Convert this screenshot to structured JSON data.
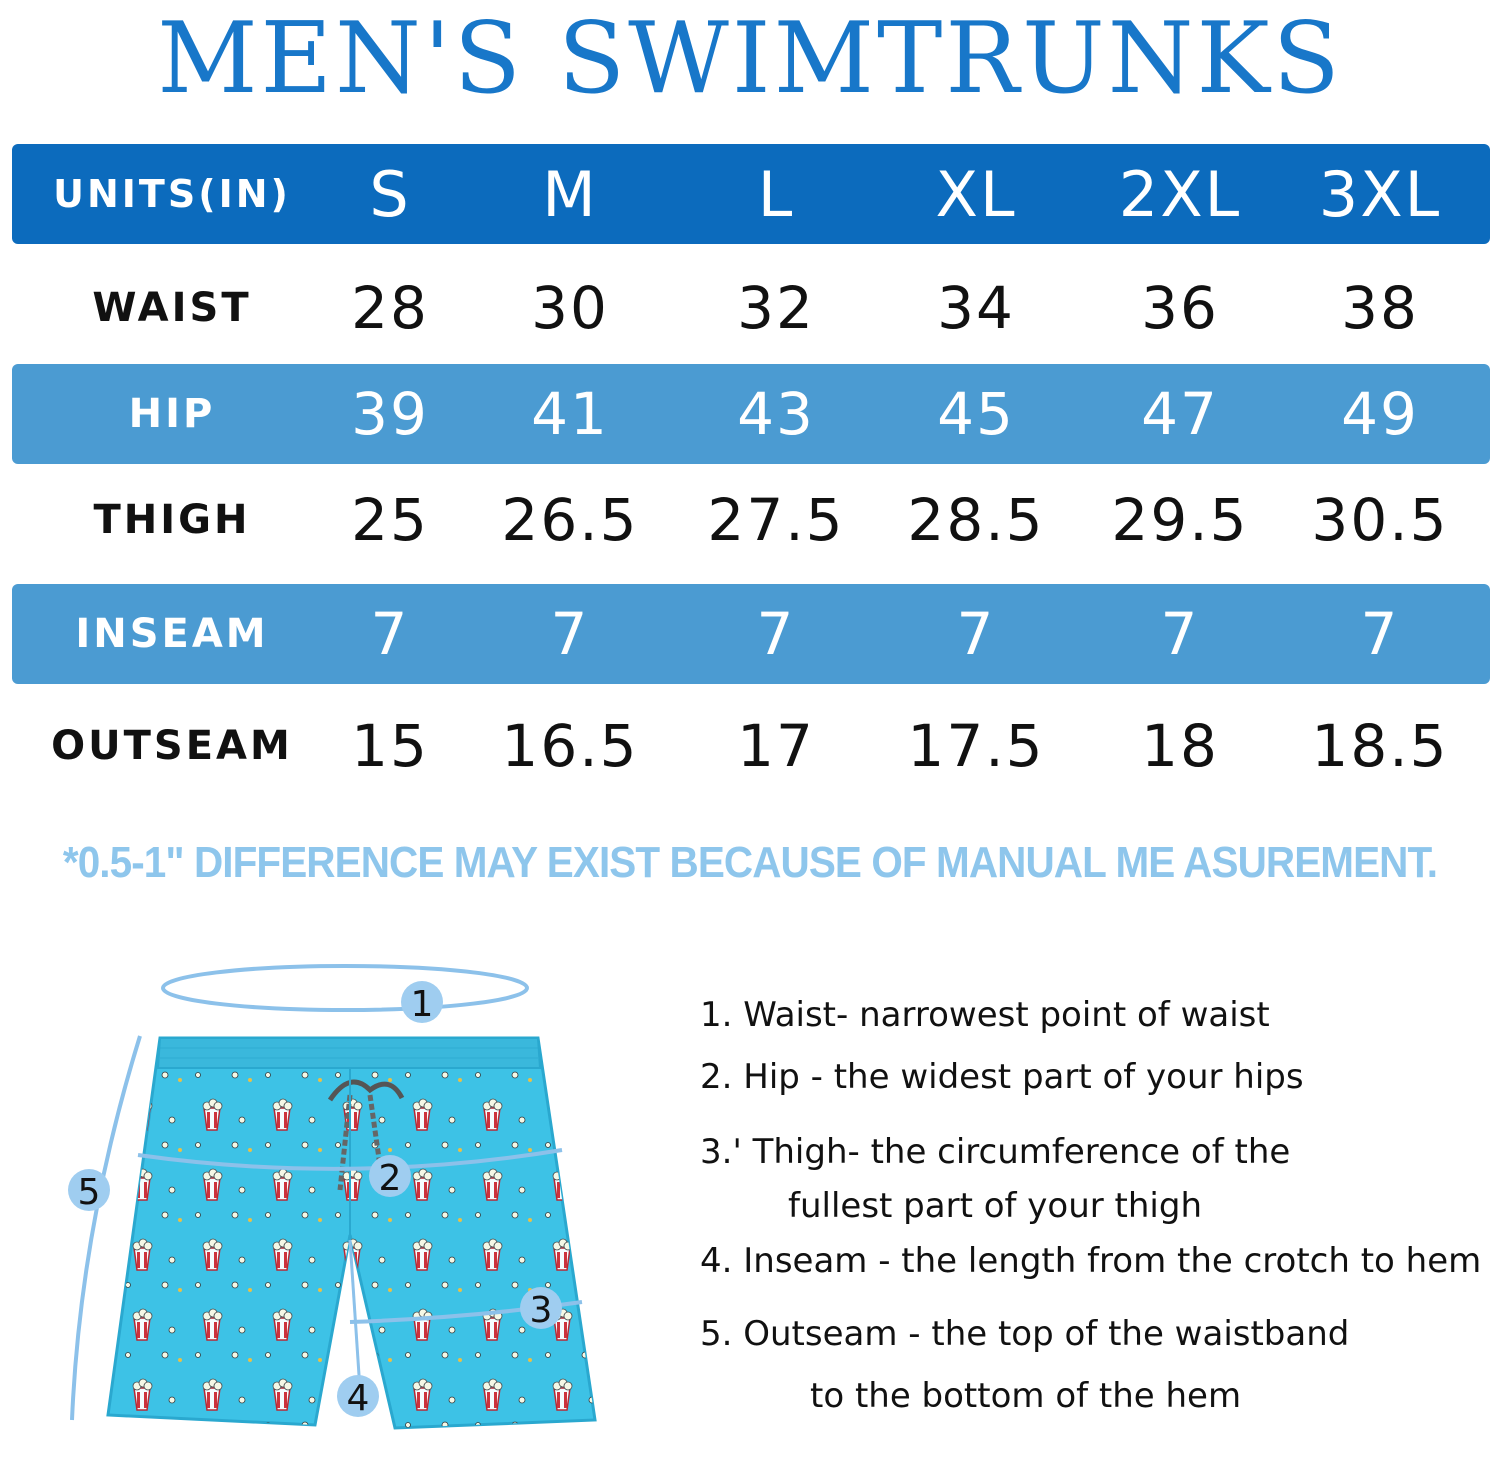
{
  "title": "MEN'S SWIMTRUNKS",
  "colors": {
    "title": "#1877c9",
    "header_band": "#0c6bbd",
    "light_band": "#4b9bd2",
    "note": "#8ec6ec",
    "shorts": "#3dc2e6",
    "shorts_dark": "#2aa8cf",
    "marker": "#9fcdf0",
    "line": "#8cc1ea"
  },
  "table": {
    "header": {
      "label": "UNITS(IN)",
      "sizes": [
        "S",
        "M",
        "L",
        "XL",
        "2XL",
        "3XL"
      ]
    },
    "rows": [
      {
        "label": "WAIST",
        "values": [
          "28",
          "30",
          "32",
          "34",
          "36",
          "38"
        ],
        "style": "dark"
      },
      {
        "label": "HIP",
        "values": [
          "39",
          "41",
          "43",
          "45",
          "47",
          "49"
        ],
        "style": "light"
      },
      {
        "label": "THIGH",
        "values": [
          "25",
          "26.5",
          "27.5",
          "28.5",
          "29.5",
          "30.5"
        ],
        "style": "dark"
      },
      {
        "label": "INSEAM",
        "values": [
          "7",
          "7",
          "7",
          "7",
          "7",
          "7"
        ],
        "style": "light"
      },
      {
        "label": "OUTSEAM",
        "values": [
          "15",
          "16.5",
          "17",
          "17.5",
          "18",
          "18.5"
        ],
        "style": "dark"
      }
    ]
  },
  "note": "*0.5-1\" DIFFERENCE MAY EXIST BECAUSE OF MANUAL ME ASUREMENT.",
  "diagram": {
    "markers": [
      "1",
      "2",
      "3",
      "4",
      "5"
    ],
    "icon": "swim-shorts-popcorn-print"
  },
  "legend": [
    {
      "line1": "1. Waist- narrowest point of waist",
      "line2": ""
    },
    {
      "line1": "2. Hip - the widest part of your hips",
      "line2": ""
    },
    {
      "line1": "3.' Thigh- the circumference of the",
      "line2": "fullest part of your thigh"
    },
    {
      "line1": "4. Inseam - the length from the crotch to hem",
      "line2": ""
    },
    {
      "line1": "5. Outseam - the top of the waistband",
      "line2": "to the bottom of the hem"
    }
  ]
}
